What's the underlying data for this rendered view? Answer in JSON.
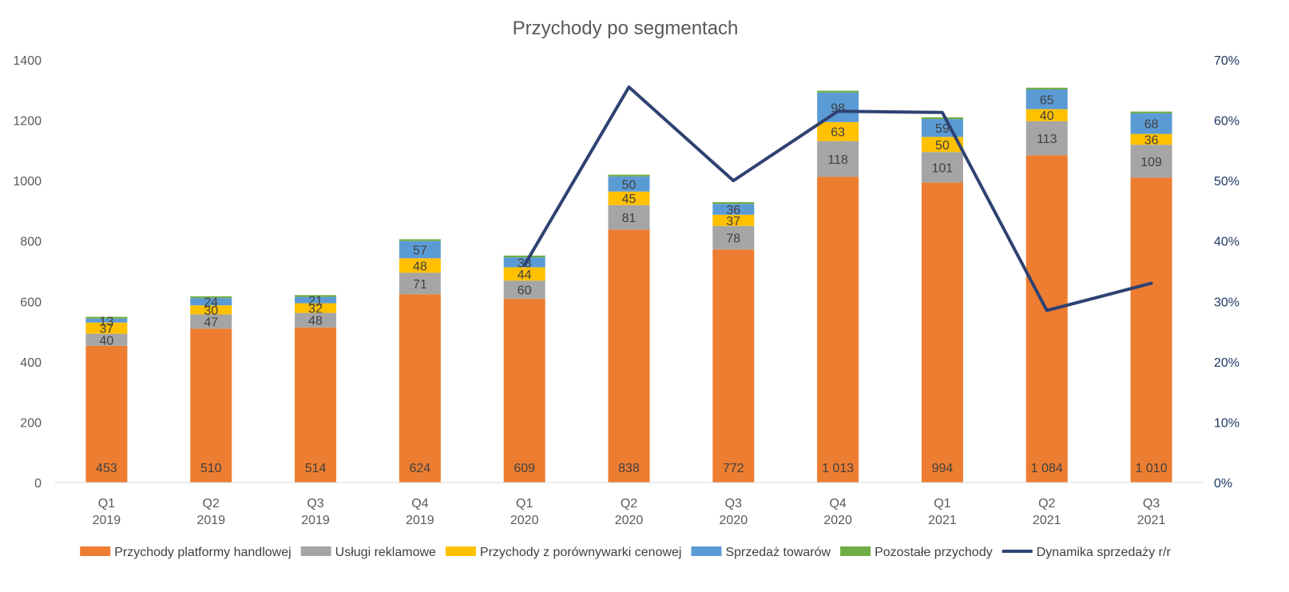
{
  "chart_data": {
    "type": "bar",
    "stacked": true,
    "title": "Przychody po segmentach",
    "categories": [
      [
        "Q1",
        "2019"
      ],
      [
        "Q2",
        "2019"
      ],
      [
        "Q3",
        "2019"
      ],
      [
        "Q4",
        "2019"
      ],
      [
        "Q1",
        "2020"
      ],
      [
        "Q2",
        "2020"
      ],
      [
        "Q3",
        "2020"
      ],
      [
        "Q4",
        "2020"
      ],
      [
        "Q1",
        "2021"
      ],
      [
        "Q2",
        "2021"
      ],
      [
        "Q3",
        "2021"
      ]
    ],
    "series": [
      {
        "name": "Przychody platformy handlowej",
        "color": "#ed7d31",
        "values": [
          453,
          510,
          514,
          624,
          609,
          838,
          772,
          1013,
          994,
          1084,
          1010
        ],
        "labels": [
          "453",
          "510",
          "514",
          "624",
          "609",
          "838",
          "772",
          "1 013",
          "994",
          "1 084",
          "1 010"
        ],
        "label_position": "inside-base"
      },
      {
        "name": "Usługi reklamowe",
        "color": "#a5a5a5",
        "values": [
          40,
          47,
          48,
          71,
          60,
          81,
          78,
          118,
          101,
          113,
          109
        ],
        "labels": [
          "40",
          "47",
          "48",
          "71",
          "60",
          "81",
          "78",
          "118",
          "101",
          "113",
          "109"
        ],
        "label_position": "center"
      },
      {
        "name": "Przychody z porównywarki cenowej",
        "color": "#ffc000",
        "values": [
          37,
          30,
          32,
          48,
          44,
          45,
          37,
          63,
          50,
          40,
          36
        ],
        "labels": [
          "37",
          "30",
          "32",
          "48",
          "44",
          "45",
          "37",
          "63",
          "50",
          "40",
          "36"
        ],
        "label_position": "center"
      },
      {
        "name": "Sprzedaż towarów",
        "color": "#5b9bd5",
        "values": [
          13,
          24,
          21,
          57,
          33,
          50,
          36,
          98,
          59,
          65,
          68
        ],
        "labels": [
          "13",
          "24",
          "21",
          "57",
          "33",
          "50",
          "36",
          "98",
          "59",
          "65",
          "68"
        ],
        "label_position": "center"
      },
      {
        "name": "Pozostałe przychody",
        "color": "#70ad47",
        "values": [
          6,
          6,
          6,
          6,
          6,
          6,
          6,
          6,
          6,
          6,
          6
        ],
        "labels": [],
        "label_position": "none"
      }
    ],
    "line_series": {
      "name": "Dynamika sprzedaży r/r",
      "color": "#2e4272",
      "axis": "right",
      "start_index": 4,
      "values": [
        null,
        null,
        null,
        null,
        0.36,
        0.655,
        0.5,
        0.615,
        0.613,
        0.285,
        0.33
      ]
    },
    "y_left": {
      "min": 0,
      "max": 1400,
      "step": 200,
      "ticks": [
        "0",
        "200",
        "400",
        "600",
        "800",
        "1000",
        "1200",
        "1400"
      ]
    },
    "y_right": {
      "min": 0,
      "max": 0.7,
      "step": 0.1,
      "ticks": [
        "0%",
        "10%",
        "20%",
        "30%",
        "40%",
        "50%",
        "60%",
        "70%"
      ]
    },
    "grid": false,
    "legend_position": "bottom"
  }
}
